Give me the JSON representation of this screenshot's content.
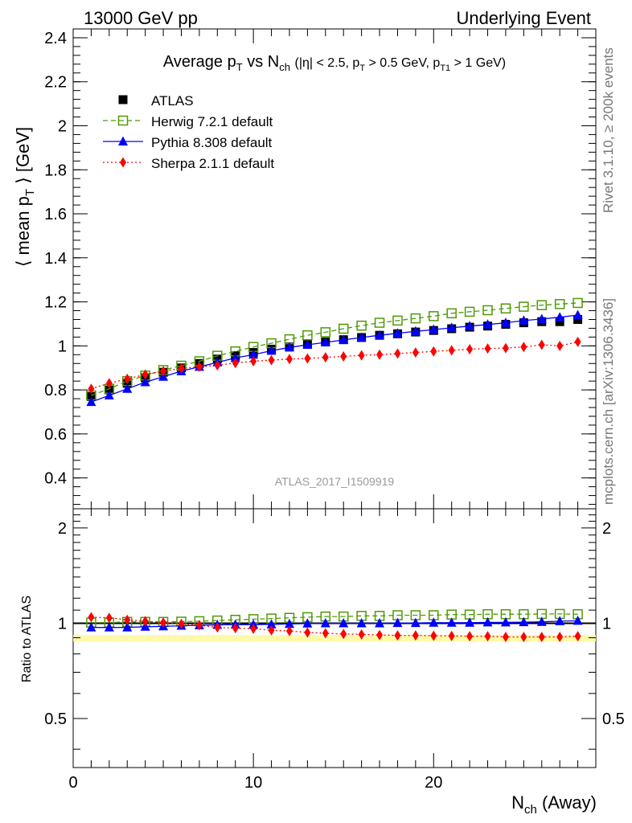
{
  "header": {
    "left": "13000 GeV pp",
    "right": "Underlying Event"
  },
  "side_labels": {
    "rivet": "Rivet 3.1.10, ≥ 200k events",
    "mcplots": "mcplots.cern.ch [arXiv:1306.3436]"
  },
  "watermark": "ATLAS_2017_I1509919",
  "chart_data": [
    {
      "type": "scatter",
      "title": "Average pT vs Nch (|η| < 2.5, pT > 0.5 GeV, pT1 > 1 GeV)",
      "ylabel": "⟨ mean pT ⟩ [GeV]",
      "xlabel": "",
      "xlim": [
        0,
        29
      ],
      "ylim": [
        0.26,
        2.44
      ],
      "y_ticks": [
        0.4,
        0.6,
        0.8,
        1,
        1.2,
        1.4,
        1.6,
        1.8,
        2,
        2.2,
        2.4
      ],
      "y_tick_labels": [
        "0.4",
        "0.6",
        "0.8",
        "1",
        "1.2",
        "1.4",
        "1.6",
        "1.8",
        "2",
        "2.2",
        "2.4"
      ],
      "legend_position": "top-left",
      "x": [
        1,
        2,
        3,
        4,
        5,
        6,
        7,
        8,
        9,
        10,
        11,
        12,
        13,
        14,
        15,
        16,
        17,
        18,
        19,
        20,
        21,
        22,
        23,
        24,
        25,
        26,
        27,
        28
      ],
      "series": [
        {
          "name": "ATLAS",
          "marker": "square-filled",
          "color": "#000000",
          "values": [
            0.77,
            0.8,
            0.83,
            0.855,
            0.88,
            0.9,
            0.92,
            0.94,
            0.955,
            0.97,
            0.985,
            0.995,
            1.008,
            1.018,
            1.028,
            1.038,
            1.048,
            1.055,
            1.063,
            1.07,
            1.078,
            1.085,
            1.09,
            1.098,
            1.105,
            1.11,
            1.11,
            1.12
          ]
        },
        {
          "name": "Herwig 7.2.1 default",
          "marker": "square-open",
          "color": "#4e9a06",
          "line": "dashed",
          "values": [
            0.775,
            0.805,
            0.84,
            0.865,
            0.89,
            0.91,
            0.93,
            0.955,
            0.975,
            0.995,
            1.012,
            1.03,
            1.048,
            1.062,
            1.078,
            1.092,
            1.105,
            1.115,
            1.125,
            1.135,
            1.148,
            1.155,
            1.162,
            1.17,
            1.178,
            1.185,
            1.19,
            1.195
          ]
        },
        {
          "name": "Pythia 8.308 default",
          "marker": "triangle-filled",
          "color": "#0000ff",
          "line": "solid",
          "values": [
            0.745,
            0.775,
            0.805,
            0.835,
            0.86,
            0.885,
            0.905,
            0.925,
            0.945,
            0.96,
            0.978,
            0.993,
            1.005,
            1.016,
            1.027,
            1.038,
            1.048,
            1.057,
            1.066,
            1.074,
            1.082,
            1.09,
            1.097,
            1.105,
            1.115,
            1.122,
            1.13,
            1.14
          ]
        },
        {
          "name": "Sherpa 2.1.1 default",
          "marker": "diamond-filled",
          "color": "#ff0000",
          "line": "dotted",
          "values": [
            0.805,
            0.83,
            0.85,
            0.87,
            0.885,
            0.898,
            0.905,
            0.912,
            0.922,
            0.93,
            0.935,
            0.94,
            0.943,
            0.948,
            0.952,
            0.957,
            0.96,
            0.965,
            0.97,
            0.975,
            0.98,
            0.985,
            0.988,
            0.99,
            0.995,
            1.005,
            1.0,
            1.018
          ]
        }
      ]
    },
    {
      "type": "scatter",
      "title": "",
      "ylabel": "Ratio to ATLAS",
      "xlabel": "Nch (Away)",
      "xlim": [
        0,
        29
      ],
      "ylim": [
        0.35,
        2.3
      ],
      "y_scale": "log",
      "y_ticks": [
        0.5,
        1,
        2
      ],
      "y_tick_labels": [
        "0.5",
        "1",
        "2"
      ],
      "x_ticks": [
        0,
        10,
        20
      ],
      "x_tick_labels": [
        "0",
        "10",
        "20"
      ],
      "x": [
        1,
        2,
        3,
        4,
        5,
        6,
        7,
        8,
        9,
        10,
        11,
        12,
        13,
        14,
        15,
        16,
        17,
        18,
        19,
        20,
        21,
        22,
        23,
        24,
        25,
        26,
        27,
        28
      ],
      "series": [
        {
          "name": "Herwig 7.2.1 default",
          "marker": "square-open",
          "color": "#4e9a06",
          "line": "dashed",
          "values": [
            1.005,
            1.005,
            1.01,
            1.01,
            1.01,
            1.012,
            1.015,
            1.02,
            1.025,
            1.03,
            1.035,
            1.04,
            1.045,
            1.05,
            1.05,
            1.055,
            1.055,
            1.06,
            1.06,
            1.06,
            1.065,
            1.065,
            1.068,
            1.068,
            1.068,
            1.07,
            1.07,
            1.068
          ]
        },
        {
          "name": "Pythia 8.308 default",
          "marker": "triangle-filled",
          "color": "#0000ff",
          "line": "solid",
          "values": [
            0.97,
            0.97,
            0.97,
            0.975,
            0.978,
            0.982,
            0.985,
            0.988,
            0.99,
            0.99,
            0.992,
            0.995,
            0.998,
            1.0,
            1.0,
            1.0,
            1.0,
            1.002,
            1.002,
            1.004,
            1.004,
            1.004,
            1.006,
            1.006,
            1.008,
            1.01,
            1.015,
            1.018
          ]
        },
        {
          "name": "Sherpa 2.1.1 default",
          "marker": "diamond-filled",
          "color": "#ff0000",
          "line": "dotted",
          "values": [
            1.045,
            1.04,
            1.025,
            1.015,
            1.005,
            0.995,
            0.985,
            0.97,
            0.965,
            0.96,
            0.95,
            0.945,
            0.935,
            0.93,
            0.925,
            0.922,
            0.918,
            0.915,
            0.915,
            0.913,
            0.912,
            0.91,
            0.91,
            0.905,
            0.905,
            0.905,
            0.905,
            0.91
          ]
        }
      ]
    }
  ]
}
